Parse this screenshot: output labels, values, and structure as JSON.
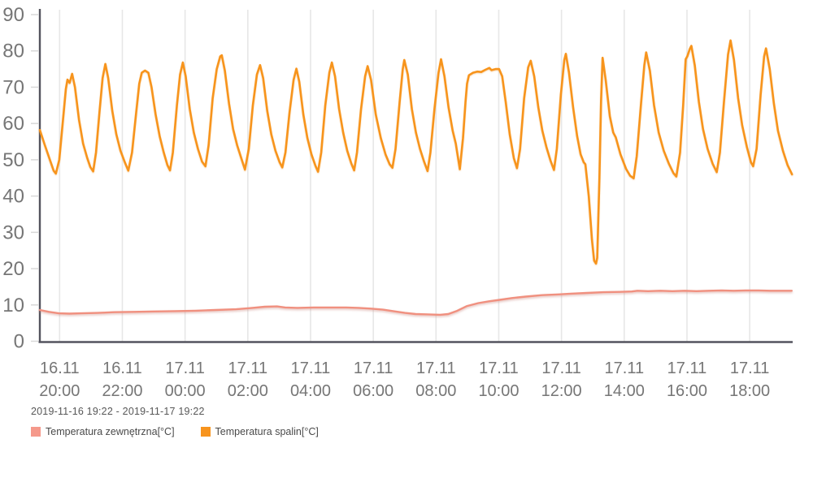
{
  "chart": {
    "date_range": "2019-11-16 19:22 - 2019-11-17 19:22",
    "legend": [
      {
        "label": "Temperatura zewnętrzna[°C]",
        "color": "#f5998b"
      },
      {
        "label": "Temperatura spalin[°C]",
        "color": "#f7941e"
      }
    ]
  },
  "colors": {
    "background": "#ffffff",
    "axis": "#54545e",
    "grid": "#e7e7e7",
    "tick": "#d8d8d8",
    "axis_text": "#767676",
    "outdoor_line": "#f0907f",
    "spalin_line": "#f7941e"
  },
  "chart_data": {
    "type": "line",
    "title": "",
    "xlabel": "",
    "ylabel": "",
    "x_unit": "hours since 2019-11-16 19:22",
    "y_unit": "°C",
    "ylim": [
      0,
      90
    ],
    "xlim_hours": [
      0,
      24
    ],
    "grid": "vertical-only",
    "legend_position": "bottom-left",
    "y_ticks": [
      0,
      10,
      20,
      30,
      40,
      50,
      60,
      70,
      80,
      90
    ],
    "x_ticks": [
      {
        "t": 0.63,
        "date": "16.11",
        "time": "20:00"
      },
      {
        "t": 2.63,
        "date": "16.11",
        "time": "22:00"
      },
      {
        "t": 4.63,
        "date": "17.11",
        "time": "00:00"
      },
      {
        "t": 6.63,
        "date": "17.11",
        "time": "02:00"
      },
      {
        "t": 8.63,
        "date": "17.11",
        "time": "04:00"
      },
      {
        "t": 10.63,
        "date": "17.11",
        "time": "06:00"
      },
      {
        "t": 12.63,
        "date": "17.11",
        "time": "08:00"
      },
      {
        "t": 14.63,
        "date": "17.11",
        "time": "10:00"
      },
      {
        "t": 16.63,
        "date": "17.11",
        "time": "12:00"
      },
      {
        "t": 18.63,
        "date": "17.11",
        "time": "14:00"
      },
      {
        "t": 20.63,
        "date": "17.11",
        "time": "16:00"
      },
      {
        "t": 22.63,
        "date": "17.11",
        "time": "18:00"
      }
    ],
    "series": [
      {
        "name": "Temperatura zewnętrzna[°C]",
        "color": "#f0907f",
        "points": [
          [
            0,
            8.6
          ],
          [
            0.29,
            8.1
          ],
          [
            0.6,
            7.7
          ],
          [
            0.94,
            7.6
          ],
          [
            1.33,
            7.7
          ],
          [
            1.85,
            7.8
          ],
          [
            2.36,
            8
          ],
          [
            3.01,
            8.1
          ],
          [
            3.66,
            8.2
          ],
          [
            4.31,
            8.3
          ],
          [
            4.96,
            8.4
          ],
          [
            5.61,
            8.6
          ],
          [
            6.26,
            8.8
          ],
          [
            6.78,
            9.2
          ],
          [
            7.17,
            9.5
          ],
          [
            7.56,
            9.6
          ],
          [
            7.82,
            9.3
          ],
          [
            8.21,
            9.2
          ],
          [
            8.73,
            9.3
          ],
          [
            9.25,
            9.3
          ],
          [
            9.77,
            9.3
          ],
          [
            10.16,
            9.2
          ],
          [
            10.55,
            9
          ],
          [
            10.94,
            8.7
          ],
          [
            11.33,
            8.2
          ],
          [
            11.64,
            7.8
          ],
          [
            11.98,
            7.5
          ],
          [
            12.37,
            7.4
          ],
          [
            12.76,
            7.3
          ],
          [
            13.02,
            7.5
          ],
          [
            13.28,
            8.3
          ],
          [
            13.62,
            9.7
          ],
          [
            13.98,
            10.5
          ],
          [
            14.32,
            11
          ],
          [
            14.66,
            11.4
          ],
          [
            15.05,
            11.9
          ],
          [
            15.49,
            12.3
          ],
          [
            16.01,
            12.7
          ],
          [
            16.53,
            12.9
          ],
          [
            16.92,
            13.1
          ],
          [
            17.44,
            13.3
          ],
          [
            17.96,
            13.5
          ],
          [
            18.48,
            13.6
          ],
          [
            18.87,
            13.7
          ],
          [
            19.05,
            13.9
          ],
          [
            19.39,
            13.8
          ],
          [
            19.78,
            13.9
          ],
          [
            20.17,
            13.8
          ],
          [
            20.56,
            13.9
          ],
          [
            20.93,
            13.8
          ],
          [
            21.34,
            13.9
          ],
          [
            21.73,
            14
          ],
          [
            22.12,
            13.9
          ],
          [
            22.51,
            14
          ],
          [
            22.9,
            14
          ],
          [
            23.29,
            13.9
          ],
          [
            23.68,
            13.9
          ],
          [
            23.97,
            13.9
          ]
        ]
      },
      {
        "name": "Temperatura spalin[°C]",
        "color": "#f7941e",
        "points": [
          [
            0,
            58.2
          ],
          [
            0.16,
            54
          ],
          [
            0.34,
            49.5
          ],
          [
            0.44,
            47
          ],
          [
            0.51,
            46.2
          ],
          [
            0.62,
            50
          ],
          [
            0.75,
            62
          ],
          [
            0.83,
            69.5
          ],
          [
            0.88,
            72.1
          ],
          [
            0.95,
            71.2
          ],
          [
            1.03,
            73.7
          ],
          [
            1.12,
            70
          ],
          [
            1.25,
            61
          ],
          [
            1.38,
            54.5
          ],
          [
            1.51,
            50.5
          ],
          [
            1.61,
            48
          ],
          [
            1.7,
            46.8
          ],
          [
            1.79,
            52
          ],
          [
            1.9,
            63
          ],
          [
            2,
            72.5
          ],
          [
            2.09,
            76.4
          ],
          [
            2.18,
            72.5
          ],
          [
            2.31,
            63.5
          ],
          [
            2.44,
            57
          ],
          [
            2.57,
            52.5
          ],
          [
            2.7,
            49.5
          ],
          [
            2.82,
            47
          ],
          [
            2.94,
            52
          ],
          [
            3.07,
            63
          ],
          [
            3.17,
            71
          ],
          [
            3.25,
            74
          ],
          [
            3.35,
            74.6
          ],
          [
            3.46,
            74
          ],
          [
            3.56,
            70
          ],
          [
            3.69,
            62.5
          ],
          [
            3.82,
            56.5
          ],
          [
            3.95,
            52
          ],
          [
            4.07,
            48.5
          ],
          [
            4.15,
            47.1
          ],
          [
            4.24,
            52
          ],
          [
            4.37,
            65
          ],
          [
            4.47,
            73.5
          ],
          [
            4.56,
            76.8
          ],
          [
            4.65,
            73
          ],
          [
            4.78,
            64
          ],
          [
            4.91,
            57.5
          ],
          [
            5.04,
            53
          ],
          [
            5.17,
            49.5
          ],
          [
            5.28,
            48.2
          ],
          [
            5.38,
            54
          ],
          [
            5.51,
            67
          ],
          [
            5.64,
            75
          ],
          [
            5.75,
            78.5
          ],
          [
            5.8,
            78.8
          ],
          [
            5.9,
            74.5
          ],
          [
            6.03,
            65.5
          ],
          [
            6.16,
            58.5
          ],
          [
            6.29,
            54
          ],
          [
            6.42,
            50.5
          ],
          [
            6.54,
            47.3
          ],
          [
            6.66,
            53
          ],
          [
            6.79,
            65
          ],
          [
            6.92,
            73.5
          ],
          [
            7.02,
            76.1
          ],
          [
            7.12,
            72.5
          ],
          [
            7.25,
            63.5
          ],
          [
            7.38,
            57
          ],
          [
            7.51,
            52.5
          ],
          [
            7.64,
            49.4
          ],
          [
            7.73,
            47.9
          ],
          [
            7.83,
            52
          ],
          [
            7.96,
            63
          ],
          [
            8.09,
            72
          ],
          [
            8.18,
            75.1
          ],
          [
            8.27,
            71.5
          ],
          [
            8.4,
            62.5
          ],
          [
            8.53,
            56
          ],
          [
            8.66,
            51.5
          ],
          [
            8.79,
            48.3
          ],
          [
            8.87,
            46.7
          ],
          [
            8.97,
            52
          ],
          [
            9.1,
            65
          ],
          [
            9.23,
            74
          ],
          [
            9.31,
            76.8
          ],
          [
            9.41,
            73
          ],
          [
            9.54,
            64
          ],
          [
            9.67,
            57.5
          ],
          [
            9.8,
            52.5
          ],
          [
            9.93,
            49
          ],
          [
            10.02,
            47.1
          ],
          [
            10.11,
            52
          ],
          [
            10.24,
            64
          ],
          [
            10.37,
            73
          ],
          [
            10.45,
            75.8
          ],
          [
            10.56,
            72
          ],
          [
            10.71,
            62.5
          ],
          [
            10.87,
            56
          ],
          [
            11.02,
            51.5
          ],
          [
            11.15,
            48.8
          ],
          [
            11.24,
            47.8
          ],
          [
            11.34,
            53
          ],
          [
            11.47,
            66
          ],
          [
            11.57,
            75
          ],
          [
            11.62,
            77.5
          ],
          [
            11.73,
            73.5
          ],
          [
            11.86,
            64
          ],
          [
            11.99,
            57.5
          ],
          [
            12.12,
            53
          ],
          [
            12.25,
            49.5
          ],
          [
            12.36,
            46.9
          ],
          [
            12.45,
            52
          ],
          [
            12.58,
            64
          ],
          [
            12.71,
            74
          ],
          [
            12.79,
            77.7
          ],
          [
            12.9,
            73
          ],
          [
            13.03,
            64.5
          ],
          [
            13.16,
            58
          ],
          [
            13.26,
            54.5
          ],
          [
            13.39,
            47.4
          ],
          [
            13.49,
            56
          ],
          [
            13.57,
            66
          ],
          [
            13.62,
            71
          ],
          [
            13.68,
            73.3
          ],
          [
            13.81,
            74
          ],
          [
            13.94,
            74.3
          ],
          [
            14.07,
            74.2
          ],
          [
            14.2,
            74.8
          ],
          [
            14.33,
            75.3
          ],
          [
            14.4,
            74.7
          ],
          [
            14.53,
            75
          ],
          [
            14.64,
            75
          ],
          [
            14.74,
            73
          ],
          [
            14.85,
            66
          ],
          [
            14.98,
            57
          ],
          [
            15.11,
            50.5
          ],
          [
            15.21,
            47.7
          ],
          [
            15.31,
            53
          ],
          [
            15.44,
            67
          ],
          [
            15.57,
            75.5
          ],
          [
            15.65,
            77.3
          ],
          [
            15.76,
            73
          ],
          [
            15.89,
            64.5
          ],
          [
            16.02,
            58
          ],
          [
            16.15,
            53.5
          ],
          [
            16.28,
            49.8
          ],
          [
            16.39,
            47.2
          ],
          [
            16.48,
            53
          ],
          [
            16.61,
            68
          ],
          [
            16.72,
            77.5
          ],
          [
            16.77,
            79.2
          ],
          [
            16.87,
            74
          ],
          [
            17,
            64.5
          ],
          [
            17.13,
            56.5
          ],
          [
            17.24,
            51.5
          ],
          [
            17.34,
            49.3
          ],
          [
            17.39,
            48.8
          ],
          [
            17.5,
            40
          ],
          [
            17.6,
            28
          ],
          [
            17.67,
            22.2
          ],
          [
            17.73,
            21.4
          ],
          [
            17.77,
            23
          ],
          [
            17.84,
            45
          ],
          [
            17.89,
            66
          ],
          [
            17.94,
            78.1
          ],
          [
            18.04,
            72
          ],
          [
            18.17,
            62
          ],
          [
            18.28,
            57.5
          ],
          [
            18.36,
            56.2
          ],
          [
            18.51,
            51.5
          ],
          [
            18.69,
            47.5
          ],
          [
            18.82,
            45.6
          ],
          [
            18.93,
            44.9
          ],
          [
            19.03,
            51
          ],
          [
            19.16,
            65
          ],
          [
            19.27,
            76
          ],
          [
            19.33,
            79.6
          ],
          [
            19.45,
            74.5
          ],
          [
            19.58,
            65
          ],
          [
            19.73,
            57.5
          ],
          [
            19.89,
            52.5
          ],
          [
            20.05,
            49
          ],
          [
            20.2,
            46.3
          ],
          [
            20.29,
            45.4
          ],
          [
            20.41,
            52
          ],
          [
            20.51,
            65
          ],
          [
            20.59,
            77.7
          ],
          [
            20.64,
            78.5
          ],
          [
            20.72,
            80.5
          ],
          [
            20.77,
            81.4
          ],
          [
            20.88,
            76
          ],
          [
            21.01,
            66
          ],
          [
            21.14,
            58.5
          ],
          [
            21.29,
            53
          ],
          [
            21.45,
            48.9
          ],
          [
            21.58,
            46.6
          ],
          [
            21.68,
            52
          ],
          [
            21.81,
            66
          ],
          [
            21.94,
            79
          ],
          [
            22.02,
            82.9
          ],
          [
            22.13,
            77.5
          ],
          [
            22.26,
            67
          ],
          [
            22.39,
            59.5
          ],
          [
            22.54,
            53.5
          ],
          [
            22.67,
            49.3
          ],
          [
            22.74,
            48.2
          ],
          [
            22.85,
            53
          ],
          [
            22.98,
            68
          ],
          [
            23.09,
            78.5
          ],
          [
            23.15,
            80.7
          ],
          [
            23.27,
            75
          ],
          [
            23.4,
            65.5
          ],
          [
            23.53,
            58
          ],
          [
            23.69,
            52.5
          ],
          [
            23.84,
            48.5
          ],
          [
            23.98,
            46
          ]
        ]
      }
    ]
  }
}
